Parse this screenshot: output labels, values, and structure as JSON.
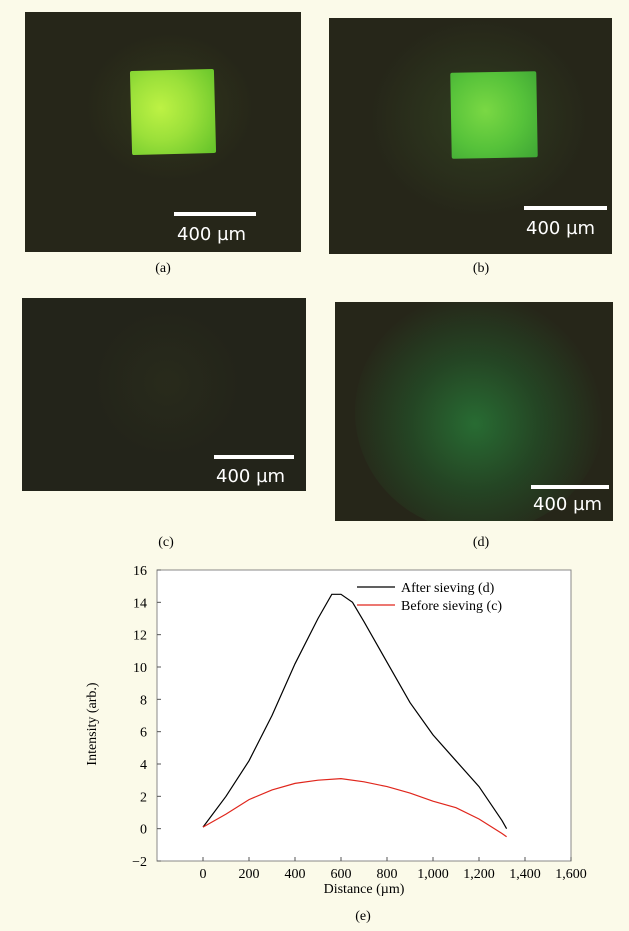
{
  "panels": [
    {
      "label": "(a)",
      "scale_text": "400 µm"
    },
    {
      "label": "(b)",
      "scale_text": "400 µm"
    },
    {
      "label": "(c)",
      "scale_text": "400 µm"
    },
    {
      "label": "(d)",
      "scale_text": "400 µm"
    }
  ],
  "chart_label": "(e)",
  "chart_data": {
    "type": "line",
    "xlabel": "Distance (µm)",
    "ylabel": "Intensity (arb.)",
    "xlim": [
      -200,
      1600
    ],
    "ylim": [
      -2,
      16
    ],
    "x_ticks": [
      "0",
      "200",
      "400",
      "600",
      "800",
      "1,000",
      "1,200",
      "1,400",
      "1,600"
    ],
    "y_ticks": [
      "−2",
      "0",
      "2",
      "4",
      "6",
      "8",
      "10",
      "12",
      "14",
      "16"
    ],
    "grid": false,
    "legend_position": "top-right",
    "series": [
      {
        "name": "After sieving (d)",
        "color": "#000000",
        "x": [
          0,
          100,
          200,
          300,
          400,
          500,
          560,
          600,
          650,
          700,
          800,
          900,
          1000,
          1100,
          1200,
          1300,
          1320
        ],
        "y": [
          0.1,
          2.0,
          4.2,
          7.0,
          10.2,
          13.0,
          14.5,
          14.5,
          14.0,
          12.8,
          10.3,
          7.8,
          5.8,
          4.2,
          2.6,
          0.5,
          0.0
        ]
      },
      {
        "name": "Before sieving (c)",
        "color": "#e0261c",
        "x": [
          0,
          100,
          200,
          300,
          400,
          500,
          600,
          700,
          800,
          900,
          1000,
          1100,
          1200,
          1300,
          1320
        ],
        "y": [
          0.1,
          0.9,
          1.8,
          2.4,
          2.8,
          3.0,
          3.1,
          2.9,
          2.6,
          2.2,
          1.7,
          1.3,
          0.6,
          -0.3,
          -0.5
        ]
      }
    ]
  }
}
